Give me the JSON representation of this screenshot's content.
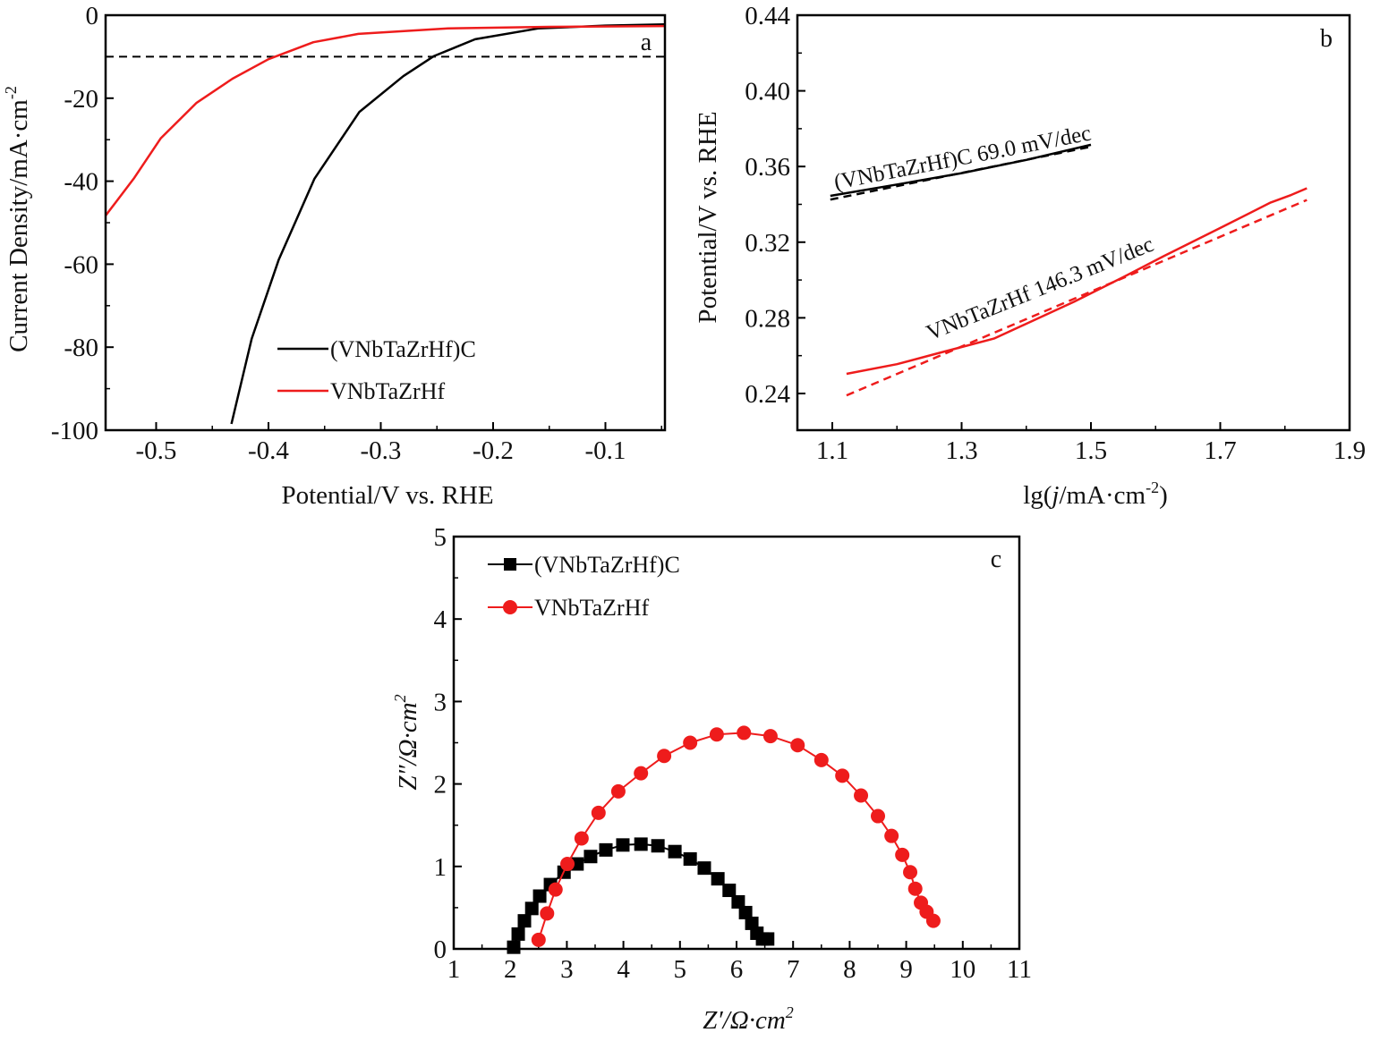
{
  "chart_data": [
    {
      "id": "a",
      "type": "line",
      "panel_label": "a",
      "xlabel": "Potential/V vs. RHE",
      "ylabel": "Current Density/mA·cm",
      "ylabel_sup": "-2",
      "xlim": [
        -0.545,
        -0.047
      ],
      "ylim": [
        -100,
        0
      ],
      "xticks": [
        -0.5,
        -0.4,
        -0.3,
        -0.2,
        -0.1
      ],
      "xtick_labels": [
        "-0.5",
        "-0.4",
        "-0.3",
        "-0.2",
        "-0.1"
      ],
      "yticks": [
        0,
        -20,
        -40,
        -60,
        -80,
        -100
      ],
      "ytick_labels": [
        "0",
        "-20",
        "-40",
        "-60",
        "-80",
        "-100"
      ],
      "xminor": 0.05,
      "yminor": 10,
      "reference_line": {
        "y": -10,
        "style": "dashed",
        "color": "#000000"
      },
      "legend_position": "lower-center",
      "series": [
        {
          "name": "(VNbTaZrHf)C",
          "color": "#000000",
          "x": [
            -0.433,
            -0.415,
            -0.391,
            -0.359,
            -0.319,
            -0.28,
            -0.253,
            -0.216,
            -0.16,
            -0.1,
            -0.047
          ],
          "y": [
            -98.5,
            -78,
            -59,
            -39.4,
            -23.3,
            -14.7,
            -9.9,
            -5.8,
            -3.2,
            -2.5,
            -2.2
          ]
        },
        {
          "name": "VNbTaZrHf",
          "color": "#ee1c1c",
          "x": [
            -0.545,
            -0.52,
            -0.496,
            -0.464,
            -0.432,
            -0.4,
            -0.36,
            -0.32,
            -0.24,
            -0.15,
            -0.047
          ],
          "y": [
            -48.3,
            -39.4,
            -29.7,
            -21.1,
            -15.3,
            -10.6,
            -6.5,
            -4.5,
            -3.2,
            -2.8,
            -2.6
          ]
        }
      ]
    },
    {
      "id": "b",
      "type": "line",
      "panel_label": "b",
      "xlabel_pre": "lg(",
      "xlabel_it": "j",
      "xlabel_mid": "/mA·cm",
      "xlabel_sup": "-2",
      "xlabel_post": ")",
      "ylabel": "Potential/V vs. RHE",
      "xlim": [
        1.046,
        1.9
      ],
      "ylim": [
        0.2206,
        0.44
      ],
      "xticks": [
        1.1,
        1.3,
        1.5,
        1.7,
        1.9
      ],
      "xtick_labels": [
        "1.1",
        "1.3",
        "1.5",
        "1.7",
        "1.9"
      ],
      "yticks": [
        0.24,
        0.28,
        0.32,
        0.36,
        0.4,
        0.44
      ],
      "ytick_labels": [
        "0.24",
        "0.28",
        "0.32",
        "0.36",
        "0.40",
        "0.44"
      ],
      "xminor": 0.1,
      "yminor": 0.02,
      "series": [
        {
          "name": "(VNbTaZrHf)C data",
          "color": "#000000",
          "dash": false,
          "x": [
            1.097,
            1.2,
            1.3,
            1.4,
            1.5
          ],
          "y": [
            0.3445,
            0.3505,
            0.3565,
            0.3635,
            0.3715
          ]
        },
        {
          "name": "(VNbTaZrHf)C fit",
          "color": "#000000",
          "dash": true,
          "x": [
            1.097,
            1.5
          ],
          "y": [
            0.3425,
            0.3705
          ]
        },
        {
          "name": "VNbTaZrHf data",
          "color": "#ee1c1c",
          "dash": false,
          "x": [
            1.122,
            1.2,
            1.266,
            1.35,
            1.474,
            1.55,
            1.612,
            1.7,
            1.778,
            1.81,
            1.834
          ],
          "y": [
            0.2504,
            0.2555,
            0.2615,
            0.269,
            0.2885,
            0.3015,
            0.3125,
            0.3275,
            0.341,
            0.345,
            0.3485
          ]
        },
        {
          "name": "VNbTaZrHf fit",
          "color": "#ee1c1c",
          "dash": true,
          "x": [
            1.122,
            1.834
          ],
          "y": [
            0.239,
            0.3423
          ]
        }
      ],
      "annotations": [
        {
          "text": "(VNbTaZrHf)C 69.0 mV/dec",
          "color": "#111111"
        },
        {
          "text": "VNbTaZrHf 146.3 mV/dec",
          "color": "#111111"
        }
      ]
    },
    {
      "id": "c",
      "type": "scatter",
      "panel_label": "c",
      "xlabel": "Z′/Ω·cm",
      "xlabel_sup": "2",
      "ylabel": "Z″/Ω·cm",
      "ylabel_sup": "2",
      "xlim": [
        1,
        11
      ],
      "ylim": [
        0,
        5
      ],
      "xticks": [
        1,
        2,
        3,
        4,
        5,
        6,
        7,
        8,
        9,
        10,
        11
      ],
      "xtick_labels": [
        "1",
        "2",
        "3",
        "4",
        "5",
        "6",
        "7",
        "8",
        "9",
        "10",
        "11"
      ],
      "yticks": [
        0,
        1,
        2,
        3,
        4,
        5
      ],
      "ytick_labels": [
        "0",
        "1",
        "2",
        "3",
        "4",
        "5"
      ],
      "xminor": 0.5,
      "yminor": 0.5,
      "legend_position": "top-left",
      "series": [
        {
          "name": "(VNbTaZrHf)C",
          "color": "#000000",
          "marker": "square",
          "x": [
            2.06,
            2.14,
            2.25,
            2.38,
            2.52,
            2.71,
            2.95,
            3.18,
            3.42,
            3.69,
            3.99,
            4.31,
            4.61,
            4.91,
            5.18,
            5.43,
            5.67,
            5.87,
            6.03,
            6.16,
            6.27,
            6.36,
            6.46,
            6.55
          ],
          "y": [
            0.02,
            0.18,
            0.34,
            0.49,
            0.64,
            0.78,
            0.93,
            1.03,
            1.12,
            1.2,
            1.26,
            1.27,
            1.25,
            1.18,
            1.09,
            0.98,
            0.85,
            0.71,
            0.57,
            0.44,
            0.31,
            0.19,
            0.12,
            0.12
          ]
        },
        {
          "name": "VNbTaZrHf",
          "color": "#ee1c1c",
          "marker": "circle",
          "x": [
            2.5,
            2.65,
            2.8,
            3.01,
            3.26,
            3.56,
            3.91,
            4.31,
            4.72,
            5.18,
            5.65,
            6.13,
            6.6,
            7.08,
            7.5,
            7.87,
            8.2,
            8.5,
            8.74,
            8.93,
            9.07,
            9.16,
            9.26,
            9.36,
            9.48
          ],
          "y": [
            0.11,
            0.43,
            0.72,
            1.03,
            1.34,
            1.65,
            1.91,
            2.13,
            2.34,
            2.5,
            2.6,
            2.62,
            2.58,
            2.47,
            2.29,
            2.1,
            1.86,
            1.61,
            1.37,
            1.14,
            0.93,
            0.73,
            0.56,
            0.45,
            0.34
          ]
        }
      ]
    }
  ]
}
